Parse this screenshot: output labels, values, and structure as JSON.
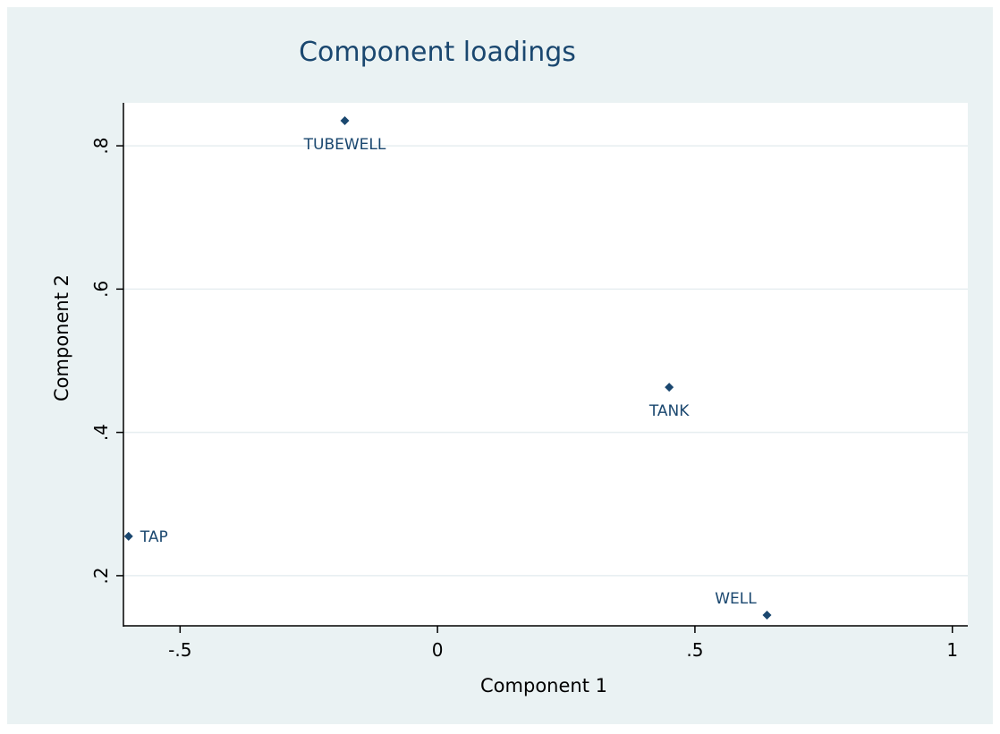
{
  "colors": {
    "frame_background": "#eaf2f3",
    "plot_background": "#ffffff",
    "marker": "#1a476f",
    "title": "#1a476f",
    "gridline": "#e6eef0"
  },
  "chart_data": {
    "type": "scatter",
    "title": "Component loadings",
    "xlabel": "Component 1",
    "ylabel": "Component 2",
    "xlim": [
      -0.61,
      1.03
    ],
    "ylim": [
      0.13,
      0.86
    ],
    "xticks": [
      -0.5,
      0,
      0.5,
      1
    ],
    "xtick_labels": [
      "-.5",
      "0",
      ".5",
      "1"
    ],
    "yticks": [
      0.2,
      0.4,
      0.6,
      0.8
    ],
    "ytick_labels": [
      ".2",
      ".4",
      ".6",
      ".8"
    ],
    "grid": "horizontal",
    "marker": "diamond",
    "points": [
      {
        "label": "TUBEWELL",
        "x": -0.18,
        "y": 0.835,
        "label_position": "below"
      },
      {
        "label": "TANK",
        "x": 0.45,
        "y": 0.463,
        "label_position": "below"
      },
      {
        "label": "TAP",
        "x": -0.6,
        "y": 0.255,
        "label_position": "right"
      },
      {
        "label": "WELL",
        "x": 0.64,
        "y": 0.145,
        "label_position": "above-left"
      }
    ]
  }
}
